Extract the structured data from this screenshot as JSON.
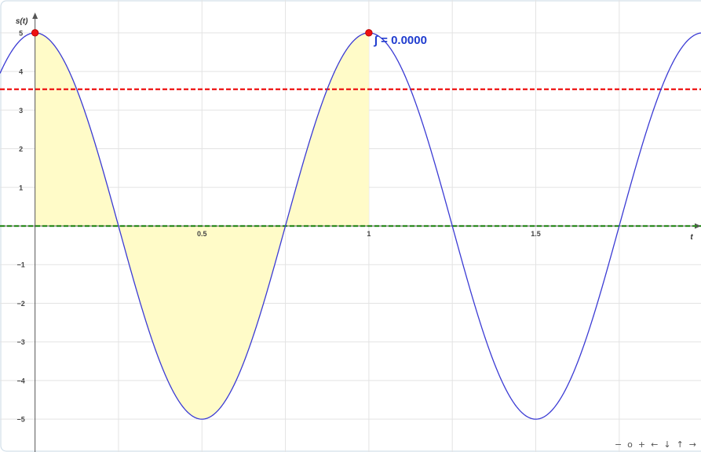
{
  "chart_data": {
    "type": "line",
    "xlabel": "t",
    "ylabel": "s(t)",
    "xlim": [
      -0.105,
      1.995
    ],
    "ylim": [
      -5.85,
      5.85
    ],
    "x_ticks": [
      0.5,
      1,
      1.5
    ],
    "x_tick_labels": [
      "0.5",
      "1",
      "1.5"
    ],
    "y_ticks": [
      -5,
      -4,
      -3,
      -2,
      -1,
      1,
      2,
      3,
      4,
      5
    ],
    "y_tick_labels": [
      "−5",
      "−4",
      "−3",
      "−2",
      "−1",
      "1",
      "2",
      "3",
      "4",
      "5"
    ],
    "grid": true,
    "function": {
      "amplitude": 5,
      "period": 1,
      "form": "cosine"
    },
    "shaded_region": {
      "from": 0,
      "to": 1,
      "color": "#fffbc8"
    },
    "integral_label": "∫ = 0.0000",
    "horizontal_lines": [
      {
        "y": 3.54,
        "color": "#ee1111",
        "style": "dashed"
      },
      {
        "y": 0,
        "color": "#2e8b22",
        "style": "dashed"
      }
    ],
    "points": [
      {
        "x": 0,
        "y": 5,
        "color": "#ee1111"
      },
      {
        "x": 1,
        "y": 5,
        "color": "#ee1111"
      }
    ],
    "curve_color": "#3b3bd4"
  },
  "nav": {
    "zoom_out": "−",
    "reset": "o",
    "zoom_in": "+",
    "left": "←",
    "down": "↓",
    "up": "↑",
    "right": "→"
  }
}
